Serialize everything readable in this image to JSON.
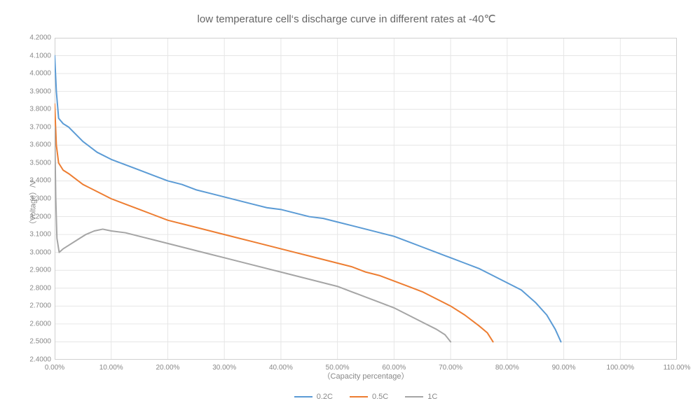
{
  "chart": {
    "type": "line",
    "title": "low temperature cell‘s discharge curve in different rates at -40℃",
    "title_fontsize": 15,
    "title_color": "#666666",
    "background_color": "#ffffff",
    "plot_bg_color": "#ffffff",
    "border_color": "#d0d0d0",
    "grid_color": "#e6e6e6",
    "grid_on": true,
    "label_fontsize": 11,
    "tick_fontsize": 10,
    "label_color": "#888888",
    "line_width": 2,
    "x": {
      "label": "（Capacity percentage）",
      "min": 0,
      "max": 110,
      "tick_step": 10,
      "tick_format": "0.00%"
    },
    "y": {
      "label": "（Voltage）/V",
      "min": 2.4,
      "max": 4.2,
      "tick_step": 0.1,
      "tick_format": "0.0000"
    },
    "series": [
      {
        "name": "0.2C",
        "color": "#5b9bd5",
        "points": [
          [
            0.0,
            4.1
          ],
          [
            0.3,
            3.9
          ],
          [
            0.7,
            3.75
          ],
          [
            1.5,
            3.72
          ],
          [
            2.5,
            3.7
          ],
          [
            5.0,
            3.62
          ],
          [
            7.5,
            3.56
          ],
          [
            10.0,
            3.52
          ],
          [
            12.5,
            3.49
          ],
          [
            15.0,
            3.46
          ],
          [
            17.5,
            3.43
          ],
          [
            20.0,
            3.4
          ],
          [
            22.5,
            3.38
          ],
          [
            25.0,
            3.35
          ],
          [
            27.5,
            3.33
          ],
          [
            30.0,
            3.31
          ],
          [
            32.5,
            3.29
          ],
          [
            35.0,
            3.27
          ],
          [
            37.5,
            3.25
          ],
          [
            40.0,
            3.24
          ],
          [
            42.5,
            3.22
          ],
          [
            45.0,
            3.2
          ],
          [
            47.5,
            3.19
          ],
          [
            50.0,
            3.17
          ],
          [
            52.5,
            3.15
          ],
          [
            55.0,
            3.13
          ],
          [
            57.5,
            3.11
          ],
          [
            60.0,
            3.09
          ],
          [
            62.5,
            3.06
          ],
          [
            65.0,
            3.03
          ],
          [
            67.5,
            3.0
          ],
          [
            70.0,
            2.97
          ],
          [
            72.5,
            2.94
          ],
          [
            75.0,
            2.91
          ],
          [
            77.5,
            2.87
          ],
          [
            80.0,
            2.83
          ],
          [
            82.5,
            2.79
          ],
          [
            85.0,
            2.72
          ],
          [
            87.0,
            2.65
          ],
          [
            88.5,
            2.57
          ],
          [
            89.5,
            2.5
          ]
        ]
      },
      {
        "name": "0.5C",
        "color": "#ed7d31",
        "points": [
          [
            0.0,
            3.83
          ],
          [
            0.3,
            3.6
          ],
          [
            0.7,
            3.5
          ],
          [
            1.5,
            3.46
          ],
          [
            2.5,
            3.44
          ],
          [
            5.0,
            3.38
          ],
          [
            7.5,
            3.34
          ],
          [
            10.0,
            3.3
          ],
          [
            12.5,
            3.27
          ],
          [
            15.0,
            3.24
          ],
          [
            17.5,
            3.21
          ],
          [
            20.0,
            3.18
          ],
          [
            22.5,
            3.16
          ],
          [
            25.0,
            3.14
          ],
          [
            27.5,
            3.12
          ],
          [
            30.0,
            3.1
          ],
          [
            32.5,
            3.08
          ],
          [
            35.0,
            3.06
          ],
          [
            37.5,
            3.04
          ],
          [
            40.0,
            3.02
          ],
          [
            42.5,
            3.0
          ],
          [
            45.0,
            2.98
          ],
          [
            47.5,
            2.96
          ],
          [
            50.0,
            2.94
          ],
          [
            52.5,
            2.92
          ],
          [
            55.0,
            2.89
          ],
          [
            57.5,
            2.87
          ],
          [
            60.0,
            2.84
          ],
          [
            62.5,
            2.81
          ],
          [
            65.0,
            2.78
          ],
          [
            67.5,
            2.74
          ],
          [
            70.0,
            2.7
          ],
          [
            72.5,
            2.65
          ],
          [
            75.0,
            2.59
          ],
          [
            76.5,
            2.55
          ],
          [
            77.5,
            2.5
          ]
        ]
      },
      {
        "name": "1C",
        "color": "#a5a5a5",
        "points": [
          [
            0.0,
            3.7
          ],
          [
            0.2,
            3.3
          ],
          [
            0.4,
            3.08
          ],
          [
            0.8,
            3.0
          ],
          [
            1.5,
            3.02
          ],
          [
            2.5,
            3.04
          ],
          [
            4.0,
            3.07
          ],
          [
            5.5,
            3.1
          ],
          [
            7.0,
            3.12
          ],
          [
            8.5,
            3.13
          ],
          [
            10.0,
            3.12
          ],
          [
            12.5,
            3.11
          ],
          [
            15.0,
            3.09
          ],
          [
            17.5,
            3.07
          ],
          [
            20.0,
            3.05
          ],
          [
            22.5,
            3.03
          ],
          [
            25.0,
            3.01
          ],
          [
            27.5,
            2.99
          ],
          [
            30.0,
            2.97
          ],
          [
            32.5,
            2.95
          ],
          [
            35.0,
            2.93
          ],
          [
            37.5,
            2.91
          ],
          [
            40.0,
            2.89
          ],
          [
            42.5,
            2.87
          ],
          [
            45.0,
            2.85
          ],
          [
            47.5,
            2.83
          ],
          [
            50.0,
            2.81
          ],
          [
            52.5,
            2.78
          ],
          [
            55.0,
            2.75
          ],
          [
            57.5,
            2.72
          ],
          [
            60.0,
            2.69
          ],
          [
            62.5,
            2.65
          ],
          [
            65.0,
            2.61
          ],
          [
            67.5,
            2.57
          ],
          [
            69.0,
            2.54
          ],
          [
            70.0,
            2.5
          ]
        ]
      }
    ],
    "legend_position": "bottom"
  }
}
